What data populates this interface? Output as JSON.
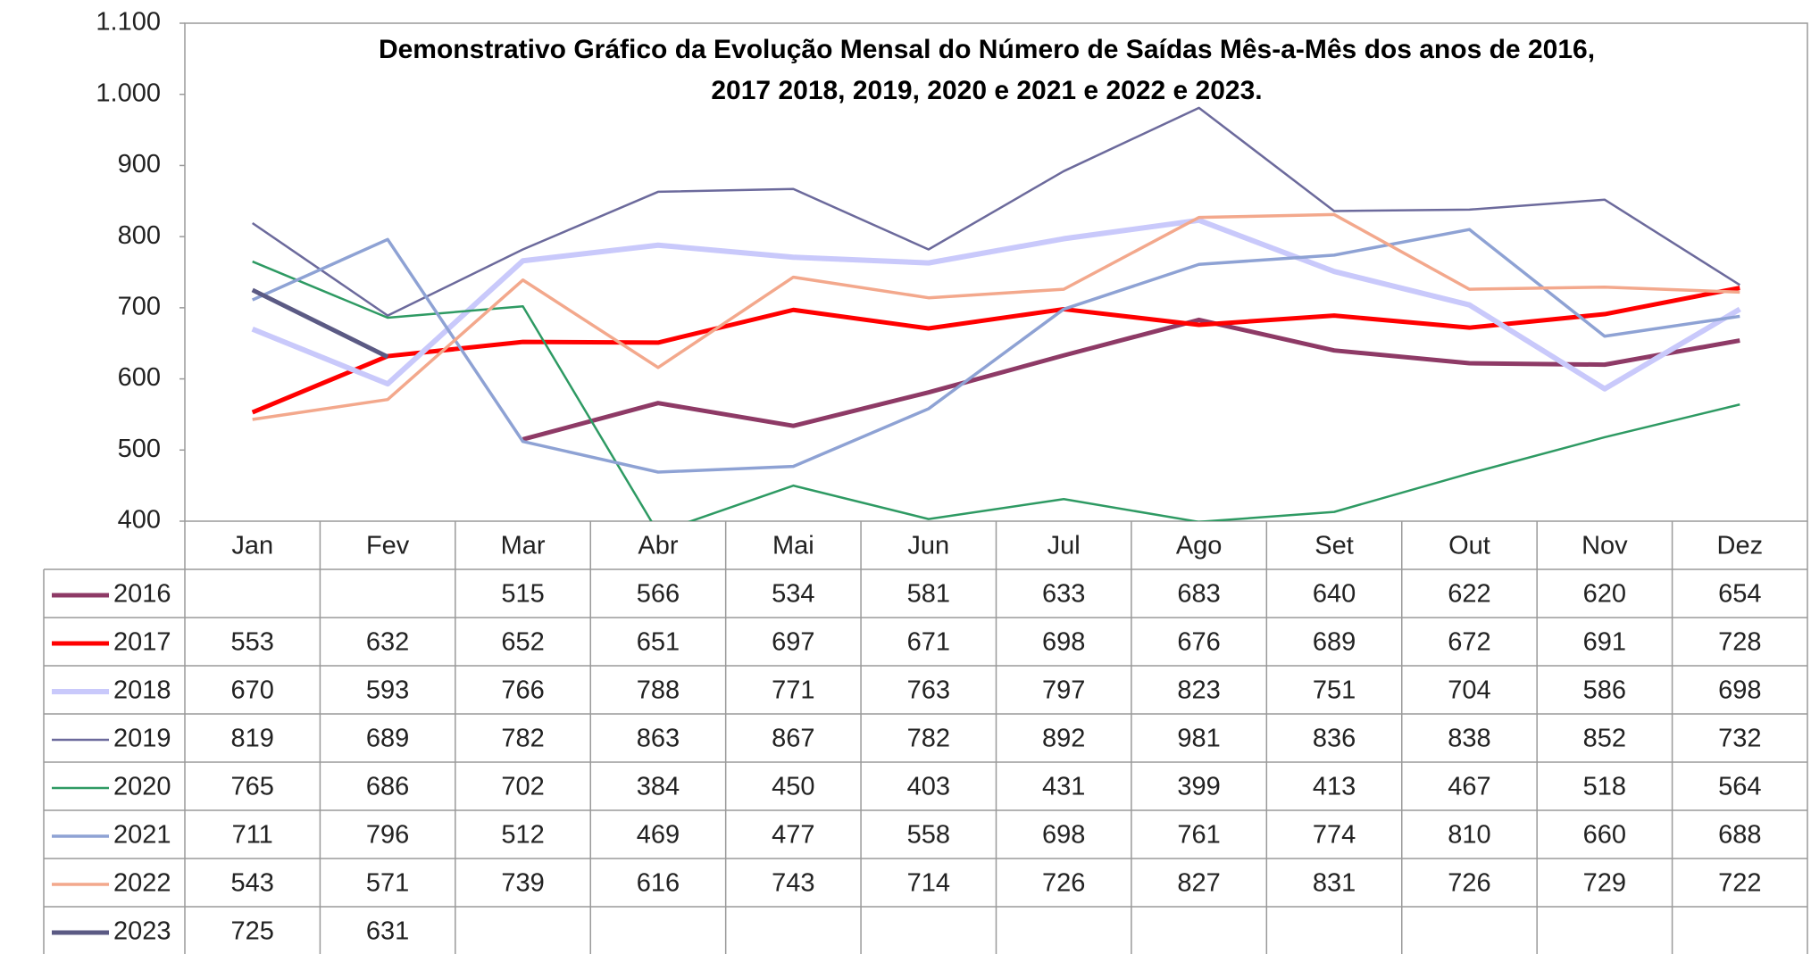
{
  "chart_data": {
    "type": "line",
    "title": [
      "Demonstrativo Gráfico da Evolução Mensal do Número de Saídas Mês-a-Mês dos anos de  2016,",
      "2017 2018, 2019, 2020 e 2021 e 2022 e 2023."
    ],
    "categories": [
      "Jan",
      "Fev",
      "Mar",
      "Abr",
      "Mai",
      "Jun",
      "Jul",
      "Ago",
      "Set",
      "Out",
      "Nov",
      "Dez"
    ],
    "ylim": [
      400,
      1100
    ],
    "yticks": [
      400,
      500,
      600,
      700,
      800,
      900,
      {
        "value": 1000,
        "label": "1.000"
      },
      {
        "value": 1100,
        "label": "1.100"
      }
    ],
    "grid": false,
    "series": [
      {
        "name": "2016",
        "color": "#8e3a66",
        "values": [
          null,
          null,
          515,
          566,
          534,
          581,
          633,
          683,
          640,
          622,
          620,
          654
        ]
      },
      {
        "name": "2017",
        "color": "#ff0000",
        "values": [
          553,
          632,
          652,
          651,
          697,
          671,
          698,
          676,
          689,
          672,
          691,
          728
        ]
      },
      {
        "name": "2018",
        "color": "#c9c9fb",
        "values": [
          670,
          593,
          766,
          788,
          771,
          763,
          797,
          823,
          751,
          704,
          586,
          698
        ]
      },
      {
        "name": "2019",
        "color": "#6c6a9c",
        "values": [
          819,
          689,
          782,
          863,
          867,
          782,
          892,
          981,
          836,
          838,
          852,
          732
        ]
      },
      {
        "name": "2020",
        "color": "#2e9a63",
        "values": [
          765,
          686,
          702,
          384,
          450,
          403,
          431,
          399,
          413,
          467,
          518,
          564
        ]
      },
      {
        "name": "2021",
        "color": "#8ea2d4",
        "values": [
          711,
          796,
          512,
          469,
          477,
          558,
          698,
          761,
          774,
          810,
          660,
          688
        ]
      },
      {
        "name": "2022",
        "color": "#f3a88c",
        "values": [
          543,
          571,
          739,
          616,
          743,
          714,
          726,
          827,
          831,
          726,
          729,
          722
        ]
      },
      {
        "name": "2023",
        "color": "#5b5a84",
        "values": [
          725,
          631,
          null,
          null,
          null,
          null,
          null,
          null,
          null,
          null,
          null,
          null
        ]
      }
    ]
  }
}
